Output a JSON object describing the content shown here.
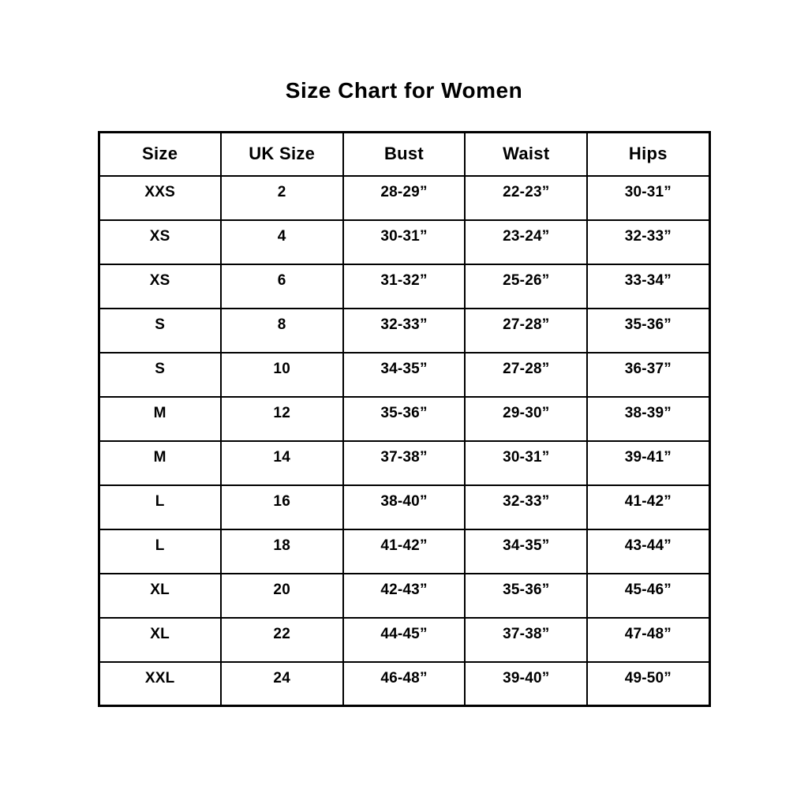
{
  "page": {
    "title": "Size Chart for Women"
  },
  "colors": {
    "background": "#ffffff",
    "border": "#000000",
    "text": "#000000"
  },
  "chart_data": {
    "type": "table",
    "title": "Size Chart for Women",
    "columns": [
      "Size",
      "UK Size",
      "Bust",
      "Waist",
      "Hips"
    ],
    "rows": [
      [
        "XXS",
        "2",
        "28-29”",
        "22-23”",
        "30-31”"
      ],
      [
        "XS",
        "4",
        "30-31”",
        "23-24”",
        "32-33”"
      ],
      [
        "XS",
        "6",
        "31-32”",
        "25-26”",
        "33-34”"
      ],
      [
        "S",
        "8",
        "32-33”",
        "27-28”",
        "35-36”"
      ],
      [
        "S",
        "10",
        "34-35”",
        "27-28”",
        "36-37”"
      ],
      [
        "M",
        "12",
        "35-36”",
        "29-30”",
        "38-39”"
      ],
      [
        "M",
        "14",
        "37-38”",
        "30-31”",
        "39-41”"
      ],
      [
        "L",
        "16",
        "38-40”",
        "32-33”",
        "41-42”"
      ],
      [
        "L",
        "18",
        "41-42”",
        "34-35”",
        "43-44”"
      ],
      [
        "XL",
        "20",
        "42-43”",
        "35-36”",
        "45-46”"
      ],
      [
        "XL",
        "22",
        "44-45”",
        "37-38”",
        "47-48”"
      ],
      [
        "XXL",
        "24",
        "46-48”",
        "39-40”",
        "49-50”"
      ]
    ],
    "layout": {
      "grid": true,
      "column_width_percent": 20,
      "header_bold": true,
      "cell_bold": true
    }
  }
}
